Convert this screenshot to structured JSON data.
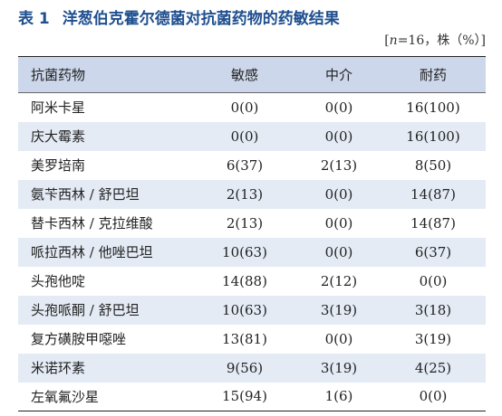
{
  "table_label": "表 1",
  "title": "洋葱伯克霍尔德菌对抗菌药物的药敏结果",
  "unit_open": "[",
  "unit_n": "n",
  "unit_rest": "=16，株（%）]",
  "headers": [
    "抗菌药物",
    "敏感",
    "中介",
    "耐药"
  ],
  "rows": [
    [
      "阿米卡星",
      "0(0)",
      "0(0)",
      "16(100)"
    ],
    [
      "庆大霉素",
      "0(0)",
      "0(0)",
      "16(100)"
    ],
    [
      "美罗培南",
      "6(37)",
      "2(13)",
      "8(50)"
    ],
    [
      "氨苄西林 / 舒巴坦",
      "2(13)",
      "0(0)",
      "14(87)"
    ],
    [
      "替卡西林 / 克拉维酸",
      "2(13)",
      "0(0)",
      "14(87)"
    ],
    [
      "哌拉西林 / 他唑巴坦",
      "10(63)",
      "0(0)",
      "6(37)"
    ],
    [
      "头孢他啶",
      "14(88)",
      "2(12)",
      "0(0)"
    ],
    [
      "头孢哌酮 / 舒巴坦",
      "10(63)",
      "3(19)",
      "3(18)"
    ],
    [
      "复方磺胺甲噁唑",
      "13(81)",
      "0(0)",
      "3(19)"
    ],
    [
      "米诺环素",
      "9(56)",
      "3(19)",
      "4(25)"
    ],
    [
      "左氧氟沙星",
      "15(94)",
      "1(6)",
      "0(0)"
    ]
  ]
}
